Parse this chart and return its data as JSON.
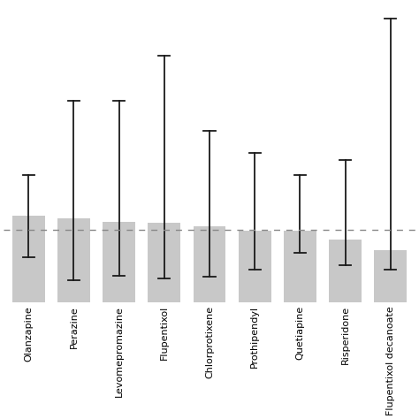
{
  "categories": [
    "Olanzapine",
    "Perazine",
    "Levomepromazine",
    "Flupentixol",
    "Chlorprotixene",
    "Prothipendyl",
    "Quetiapine",
    "Risperidone",
    "Flupentixol decanoate"
  ],
  "bar_heights": [
    5.8,
    5.6,
    5.4,
    5.3,
    5.1,
    4.8,
    4.8,
    4.2,
    3.5
  ],
  "ci_lower": [
    3.0,
    1.5,
    1.8,
    1.6,
    1.7,
    2.2,
    3.3,
    2.5,
    2.2
  ],
  "ci_upper": [
    8.5,
    13.5,
    13.5,
    16.5,
    11.5,
    10.0,
    8.5,
    9.5,
    19.0
  ],
  "dashed_line_y": 4.85,
  "bar_color": "#c8c8c8",
  "error_color": "#1a1a1a",
  "dashed_line_color": "#888888",
  "background_color": "#ffffff",
  "grid_color": "#dedede",
  "ylim": [
    0,
    20
  ],
  "n_gridlines": 5
}
